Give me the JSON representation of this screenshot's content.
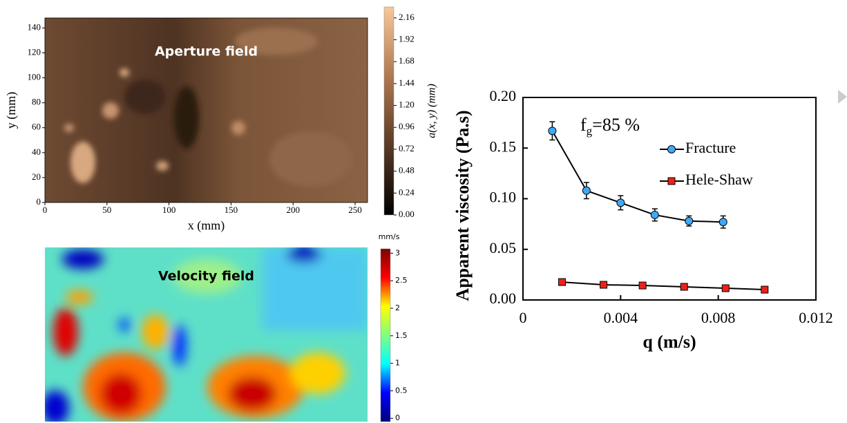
{
  "chart_data": [
    {
      "type": "image",
      "annotation": "Aperture field",
      "xlabel": "x (mm)",
      "ylabel": "y (mm)",
      "xlim": [
        0,
        260
      ],
      "ylim": [
        0,
        148
      ],
      "xticks": [
        0,
        50,
        100,
        150,
        200,
        250
      ],
      "yticks": [
        0,
        20,
        40,
        60,
        80,
        100,
        120,
        140
      ],
      "colorbar": {
        "label": "a(x, y) (mm)",
        "lim": [
          0,
          2.28
        ],
        "colors": [
          "#000000",
          "#5a3a26",
          "#b07850",
          "#f8c898"
        ],
        "ticks": [
          {
            "value": 0,
            "label": "0.00"
          },
          {
            "value": 0.24,
            "label": "0.24"
          },
          {
            "value": 0.48,
            "label": "0.48"
          },
          {
            "value": 0.72,
            "label": "0.72"
          },
          {
            "value": 0.96,
            "label": "0.96"
          },
          {
            "value": 1.2,
            "label": "1.20"
          },
          {
            "value": 1.44,
            "label": "1.44"
          },
          {
            "value": 1.68,
            "label": "1.68"
          },
          {
            "value": 1.92,
            "label": "1.92"
          },
          {
            "value": 2.16,
            "label": "2.16"
          }
        ]
      }
    },
    {
      "type": "image",
      "annotation": "Velocity field",
      "colorbar": {
        "label": "mm/s",
        "lim": [
          -0.06,
          3.08
        ],
        "colors": [
          "#00007f",
          "#0000ff",
          "#00ffff",
          "#7fff7f",
          "#ffff00",
          "#ff0000",
          "#7f0000"
        ],
        "ticks": [
          0,
          0.5,
          1,
          1.5,
          2,
          2.5,
          3
        ]
      }
    },
    {
      "type": "line",
      "xlabel": "q (m/s)",
      "ylabel": "Apparent viscosity (Pa.s)",
      "annotation": {
        "base": "f",
        "sub": "g",
        "rest": "=85 %"
      },
      "xlim": [
        0,
        0.012
      ],
      "ylim": [
        0,
        0.2
      ],
      "xticks": [
        0,
        0.004,
        0.008,
        0.012
      ],
      "yticks": [
        {
          "value": 0,
          "label": "0.00"
        },
        {
          "value": 0.05,
          "label": "0.05"
        },
        {
          "value": 0.1,
          "label": "0.10"
        },
        {
          "value": 0.15,
          "label": "0.15"
        },
        {
          "value": 0.2,
          "label": "0.20"
        }
      ],
      "series": [
        {
          "name": "Fracture",
          "color": "#3fa9f5",
          "marker": "circle",
          "x": [
            0.0012,
            0.0026,
            0.004,
            0.0054,
            0.0068,
            0.0082
          ],
          "values": [
            0.167,
            0.108,
            0.096,
            0.084,
            0.078,
            0.077
          ],
          "errors": [
            0.009,
            0.008,
            0.007,
            0.006,
            0.005,
            0.006
          ]
        },
        {
          "name": "Hele-Shaw",
          "color": "#e8231c",
          "marker": "square",
          "x": [
            0.0016,
            0.0033,
            0.0049,
            0.0066,
            0.0083,
            0.0099
          ],
          "values": [
            0.0177,
            0.015,
            0.0143,
            0.013,
            0.0116,
            0.0102
          ]
        }
      ]
    }
  ]
}
